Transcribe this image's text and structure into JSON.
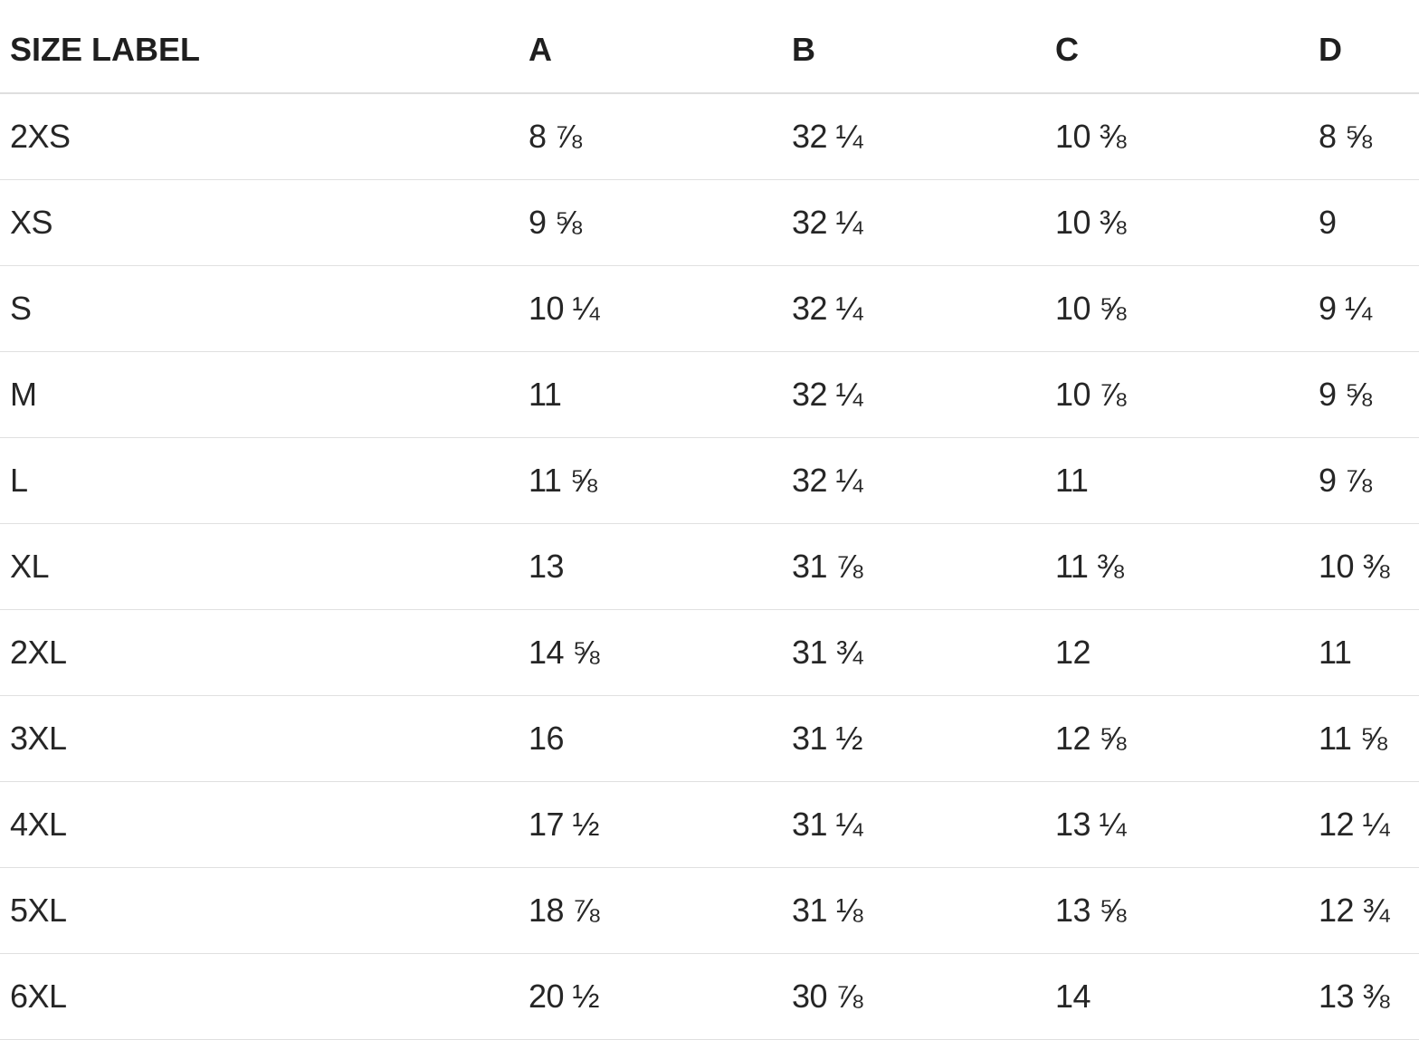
{
  "table": {
    "columns": [
      "SIZE LABEL",
      "A",
      "B",
      "C",
      "D"
    ],
    "rows": [
      {
        "size": "2XS",
        "a": "8 ⅞",
        "b": "32 ¼",
        "c": "10 ⅜",
        "d": "8 ⅝"
      },
      {
        "size": "XS",
        "a": "9 ⅝",
        "b": "32 ¼",
        "c": "10 ⅜",
        "d": "9"
      },
      {
        "size": "S",
        "a": "10 ¼",
        "b": "32 ¼",
        "c": "10 ⅝",
        "d": "9 ¼"
      },
      {
        "size": "M",
        "a": "11",
        "b": "32 ¼",
        "c": "10 ⅞",
        "d": "9 ⅝"
      },
      {
        "size": "L",
        "a": "11 ⅝",
        "b": "32 ¼",
        "c": "11",
        "d": "9 ⅞"
      },
      {
        "size": "XL",
        "a": "13",
        "b": "31 ⅞",
        "c": "11 ⅜",
        "d": "10 ⅜"
      },
      {
        "size": "2XL",
        "a": "14 ⅝",
        "b": "31 ¾",
        "c": "12",
        "d": "11"
      },
      {
        "size": "3XL",
        "a": "16",
        "b": "31 ½",
        "c": "12 ⅝",
        "d": "11 ⅝"
      },
      {
        "size": "4XL",
        "a": "17 ½",
        "b": "31 ¼",
        "c": "13 ¼",
        "d": "12 ¼"
      },
      {
        "size": "5XL",
        "a": "18 ⅞",
        "b": "31 ⅛",
        "c": "13 ⅝",
        "d": "12 ¾"
      },
      {
        "size": "6XL",
        "a": "20 ½",
        "b": "30 ⅞",
        "c": "14",
        "d": "13 ⅜"
      }
    ]
  },
  "colors": {
    "text": "#262626",
    "header_text": "#1f1f1f",
    "row_divider": "#e0e0e0",
    "header_divider": "#dedede",
    "background": "#ffffff"
  }
}
